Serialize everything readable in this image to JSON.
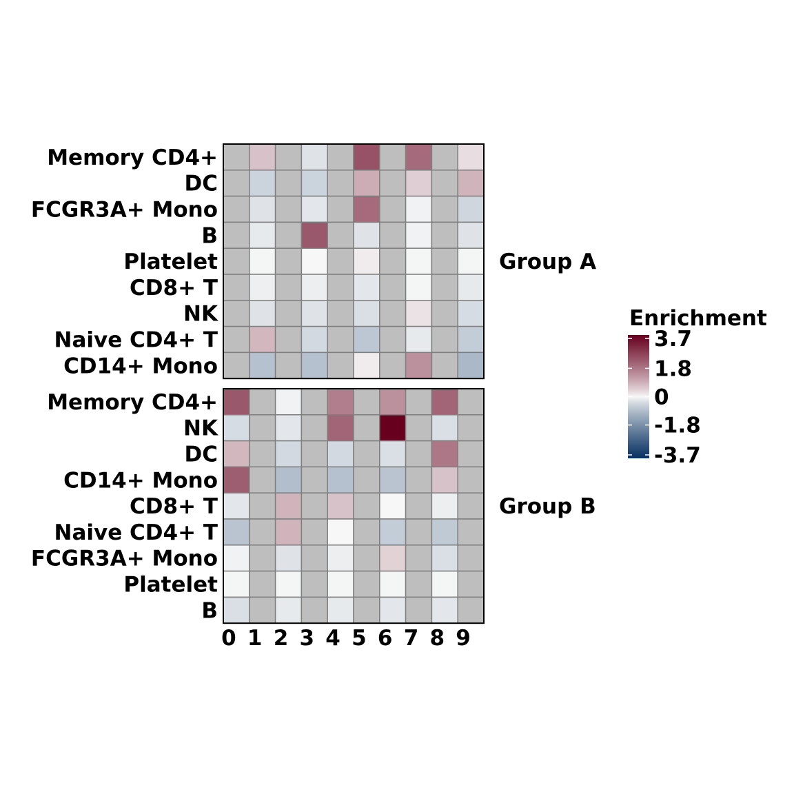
{
  "chart_data": {
    "type": "heatmap",
    "x": [
      "0",
      "1",
      "2",
      "3",
      "4",
      "5",
      "6",
      "7",
      "8",
      "9"
    ],
    "colors": {
      "low": "#053061",
      "mid": "#f7f7f7",
      "high": "#67001f",
      "na": "#bebebe",
      "cell_border": "#7f7f7f",
      "panel_border": "#000000"
    },
    "panels": [
      {
        "name": "Group A",
        "rows": [
          "Memory CD4+",
          "DC",
          "FCGR3A+ Mono",
          "B",
          "Platelet",
          "CD8+ T",
          "NK",
          "Naive CD4+ T",
          "CD14+ Mono"
        ],
        "values": [
          [
            null,
            0.6,
            null,
            -0.25,
            null,
            2.3,
            null,
            1.9,
            null,
            0.25
          ],
          [
            null,
            -0.5,
            null,
            -0.5,
            null,
            0.9,
            null,
            0.45,
            null,
            0.8
          ],
          [
            null,
            -0.25,
            null,
            -0.2,
            null,
            1.9,
            null,
            -0.05,
            null,
            -0.45
          ],
          [
            null,
            -0.15,
            null,
            2.2,
            null,
            -0.25,
            null,
            -0.05,
            null,
            -0.25
          ],
          [
            null,
            -0.02,
            null,
            0.0,
            null,
            0.1,
            null,
            -0.02,
            null,
            -0.02
          ],
          [
            null,
            -0.08,
            null,
            -0.1,
            null,
            -0.2,
            null,
            -0.02,
            null,
            -0.15
          ],
          [
            null,
            -0.25,
            null,
            -0.25,
            null,
            -0.3,
            null,
            0.2,
            null,
            -0.35
          ],
          [
            null,
            0.75,
            null,
            -0.4,
            null,
            -0.7,
            null,
            -0.15,
            null,
            -0.6
          ],
          [
            null,
            -0.8,
            null,
            -0.8,
            null,
            0.1,
            null,
            1.3,
            null,
            -0.95
          ]
        ]
      },
      {
        "name": "Group B",
        "rows": [
          "Memory CD4+",
          "NK",
          "DC",
          "CD14+ Mono",
          "CD8+ T",
          "Naive CD4+ T",
          "FCGR3A+ Mono",
          "Platelet",
          "B"
        ],
        "values": [
          [
            2.2,
            null,
            -0.05,
            null,
            1.6,
            null,
            1.3,
            null,
            2.0,
            null
          ],
          [
            -0.35,
            null,
            -0.2,
            null,
            2.0,
            null,
            3.7,
            null,
            -0.3,
            null
          ],
          [
            0.75,
            null,
            -0.4,
            null,
            -0.4,
            null,
            -0.3,
            null,
            1.7,
            null
          ],
          [
            2.1,
            null,
            -0.85,
            null,
            -0.8,
            null,
            -0.75,
            null,
            0.6,
            null
          ],
          [
            -0.2,
            null,
            0.8,
            null,
            0.6,
            null,
            0.0,
            null,
            -0.1,
            null
          ],
          [
            -0.75,
            null,
            0.8,
            null,
            0.0,
            null,
            -0.6,
            null,
            -0.65,
            null
          ],
          [
            -0.05,
            null,
            -0.25,
            null,
            -0.1,
            null,
            0.4,
            null,
            -0.3,
            null
          ],
          [
            -0.02,
            null,
            -0.02,
            null,
            -0.02,
            null,
            -0.02,
            null,
            -0.02,
            null
          ],
          [
            -0.3,
            null,
            -0.15,
            null,
            -0.15,
            null,
            -0.2,
            null,
            -0.2,
            null
          ]
        ]
      }
    ],
    "legend": {
      "title": "Enrichment",
      "ticks": [
        3.7,
        1.8,
        0,
        -1.8,
        -3.7
      ],
      "tick_labels": [
        "3.7",
        "1.8",
        "0",
        "-1.8",
        "-3.7"
      ],
      "range": [
        -3.7,
        3.7
      ]
    }
  }
}
